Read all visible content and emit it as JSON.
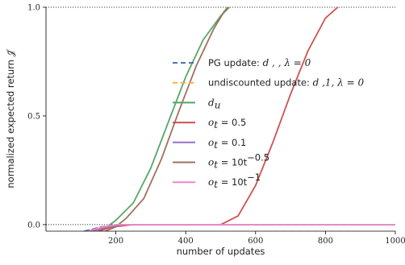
{
  "chart_data": {
    "type": "line",
    "xlabel": "number of updates",
    "ylabel": "normalized expected return",
    "ylabel_symbol": "𝒥̄",
    "xlim": [
      0,
      1000
    ],
    "ylim": [
      -0.03,
      1.0
    ],
    "x_ticks": [
      {
        "value": 200,
        "label": "200"
      },
      {
        "value": 400,
        "label": "400"
      },
      {
        "value": 600,
        "label": "600"
      },
      {
        "value": 800,
        "label": "800"
      },
      {
        "value": 1000,
        "label": "1000"
      }
    ],
    "y_ticks": [
      {
        "value": 0.0,
        "label": "0.0"
      },
      {
        "value": 0.5,
        "label": "0.5"
      },
      {
        "value": 1.0,
        "label": "1.0"
      }
    ],
    "reference_lines": [
      0.0,
      1.0
    ],
    "grid": false,
    "legend_position": "center-right",
    "series": [
      {
        "name": "PG update: d , , λ = 0",
        "color": "#4c72b0",
        "dash": "6,4",
        "points": [
          [
            110,
            -0.03
          ],
          [
            160,
            -0.01
          ],
          [
            200,
            0.0
          ],
          [
            1000,
            0.0
          ]
        ]
      },
      {
        "name": "undiscounted update: d ,1, λ = 0",
        "color": "#ffa94d",
        "dash": "6,4",
        "points": [
          [
            140,
            -0.03
          ],
          [
            180,
            -0.01
          ],
          [
            210,
            0.0
          ],
          [
            1000,
            0.0
          ]
        ]
      },
      {
        "name": "d_u",
        "color": "#55a868",
        "dash": "",
        "points": [
          [
            150,
            -0.03
          ],
          [
            175,
            -0.01
          ],
          [
            200,
            0.02
          ],
          [
            250,
            0.1
          ],
          [
            300,
            0.26
          ],
          [
            350,
            0.47
          ],
          [
            400,
            0.68
          ],
          [
            450,
            0.85
          ],
          [
            500,
            0.96
          ],
          [
            525,
            1.0
          ]
        ]
      },
      {
        "name": "o_t = 0.5",
        "color": "#d05050",
        "dash": "",
        "points": [
          [
            150,
            -0.03
          ],
          [
            190,
            -0.01
          ],
          [
            250,
            0.0
          ],
          [
            450,
            0.0
          ],
          [
            500,
            0.0
          ],
          [
            550,
            0.04
          ],
          [
            600,
            0.18
          ],
          [
            650,
            0.38
          ],
          [
            700,
            0.6
          ],
          [
            750,
            0.8
          ],
          [
            800,
            0.95
          ],
          [
            835,
            1.0
          ]
        ]
      },
      {
        "name": "o_t = 0.1",
        "color": "#9a6fc6",
        "dash": "",
        "points": [
          [
            130,
            -0.03
          ],
          [
            175,
            -0.01
          ],
          [
            220,
            0.0
          ],
          [
            1000,
            0.0
          ]
        ]
      },
      {
        "name": "o_t = 10t^-0.5",
        "color": "#a07060",
        "dash": "",
        "points": [
          [
            170,
            -0.03
          ],
          [
            200,
            -0.01
          ],
          [
            230,
            0.03
          ],
          [
            280,
            0.12
          ],
          [
            330,
            0.3
          ],
          [
            380,
            0.52
          ],
          [
            430,
            0.73
          ],
          [
            480,
            0.9
          ],
          [
            510,
            0.98
          ],
          [
            520,
            1.0
          ]
        ]
      },
      {
        "name": "o_t = 10t^-1",
        "color": "#ee88cc",
        "dash": "",
        "points": [
          [
            120,
            -0.03
          ],
          [
            165,
            -0.01
          ],
          [
            205,
            0.0
          ],
          [
            1000,
            0.0
          ]
        ]
      }
    ]
  },
  "legend": [
    {
      "color": "#4c72b0",
      "dashed": true,
      "kind": "text",
      "label": "PG update: ",
      "math": "d ,  , λ = 0"
    },
    {
      "color": "#ffa94d",
      "dashed": true,
      "kind": "text",
      "label": "undiscounted update: ",
      "math": "d ,1, λ = 0"
    },
    {
      "color": "#55a868",
      "dashed": false,
      "kind": "math",
      "label": "",
      "math": "d",
      "sub": "u"
    },
    {
      "color": "#d05050",
      "dashed": false,
      "kind": "math",
      "label": "",
      "math": "o",
      "sub": "t",
      "rest": " = 0.5"
    },
    {
      "color": "#9a6fc6",
      "dashed": false,
      "kind": "math",
      "label": "",
      "math": "o",
      "sub": "t",
      "rest": " = 0.1"
    },
    {
      "color": "#a07060",
      "dashed": false,
      "kind": "math",
      "label": "",
      "math": "o",
      "sub": "t",
      "rest": " = 10t",
      "sup": "−0.5"
    },
    {
      "color": "#ee88cc",
      "dashed": false,
      "kind": "math",
      "label": "",
      "math": "o",
      "sub": "t",
      "rest": " = 10t",
      "sup": "−1"
    }
  ]
}
